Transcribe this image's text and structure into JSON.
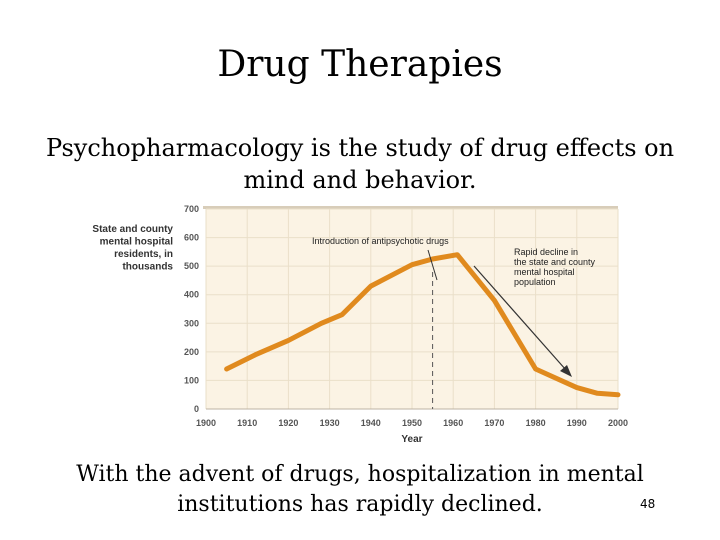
{
  "slide": {
    "title": "Drug Therapies",
    "subtitle": "Psychopharmacology is the study of drug effects on mind and behavior.",
    "footer": "With the advent of drugs, hospitalization in mental institutions has rapidly declined.",
    "page_number": "48"
  },
  "chart_data": {
    "type": "line",
    "ylabel_lines": [
      "State and county",
      "mental hospital",
      "residents, in",
      "thousands"
    ],
    "xlabel": "Year",
    "xlim": [
      1900,
      2000
    ],
    "ylim": [
      0,
      700
    ],
    "xticks": [
      1900,
      1910,
      1920,
      1930,
      1940,
      1950,
      1960,
      1970,
      1980,
      1990,
      2000
    ],
    "yticks": [
      0,
      100,
      200,
      300,
      400,
      500,
      600,
      700
    ],
    "series": [
      {
        "x": [
          1905,
          1912,
          1920,
          1928,
          1933,
          1940,
          1950,
          1955,
          1961,
          1970,
          1980,
          1990,
          1995,
          2000
        ],
        "y": [
          140,
          190,
          240,
          300,
          330,
          430,
          505,
          525,
          540,
          380,
          140,
          75,
          55,
          50
        ],
        "color": "#e08a1e"
      }
    ],
    "vline_x": 1955,
    "annotations": [
      {
        "id": "antipsychotic",
        "lines": [
          "Introduction of antipsychotic drugs"
        ]
      },
      {
        "id": "decline",
        "lines": [
          "Rapid decline in",
          "the state and county",
          "mental hospital",
          "population"
        ]
      }
    ],
    "colors": {
      "plot_bg": "#fbf3e4",
      "grid": "#eadfc9",
      "line": "#e08a1e"
    }
  }
}
